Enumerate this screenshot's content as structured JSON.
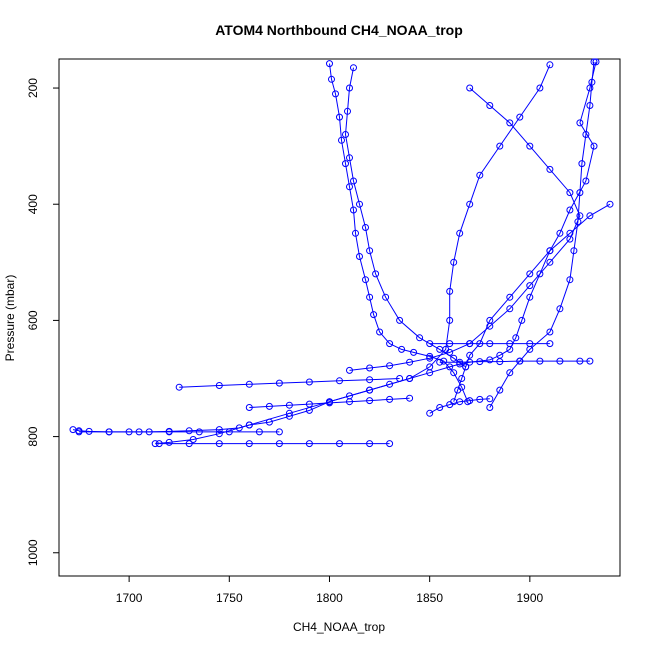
{
  "chart_data": {
    "type": "line",
    "title": "ATOM4 Northbound CH4_NOAA_trop",
    "xlabel": "CH4_NOAA_trop",
    "ylabel": "Pressure (mbar)",
    "x_ticks": [
      1700,
      1750,
      1800,
      1850,
      1900
    ],
    "x_tick_labels": [
      "1700",
      "1750",
      "1800",
      "1850",
      "1900"
    ],
    "y_ticks": [
      200,
      400,
      600,
      800,
      1000
    ],
    "y_tick_labels": [
      "200",
      "400",
      "600",
      "800",
      "1000"
    ],
    "xlim": [
      1665,
      1945
    ],
    "ylim": [
      1040,
      150
    ],
    "y_reversed": true,
    "marker": "open-circle",
    "line_color": "#0000ff",
    "marker_color": "#0000ff",
    "grid": false,
    "legend": "none",
    "series": [
      {
        "x": [
          1933,
          1930,
          1925,
          1932,
          1928,
          1920,
          1915,
          1910,
          1905,
          1900,
          1896,
          1893,
          1890,
          1885,
          1880,
          1870,
          1865,
          1860,
          1850,
          1840,
          1830,
          1820,
          1810,
          1800,
          1790,
          1780,
          1770,
          1760,
          1755,
          1745,
          1730,
          1720,
          1710,
          1700,
          1690,
          1680,
          1675,
          1672
        ],
        "y": [
          155,
          200,
          260,
          300,
          360,
          410,
          450,
          480,
          520,
          560,
          600,
          630,
          650,
          660,
          668,
          672,
          675,
          680,
          690,
          700,
          710,
          720,
          730,
          740,
          755,
          765,
          775,
          780,
          785,
          788,
          790,
          791,
          792,
          792,
          792,
          791,
          790,
          788
        ]
      },
      {
        "x": [
          1800,
          1801,
          1803,
          1805,
          1806,
          1808,
          1810,
          1812,
          1813,
          1815,
          1818,
          1820,
          1822,
          1825,
          1830,
          1836,
          1842,
          1850,
          1857,
          1862,
          1866,
          1869
        ],
        "y": [
          158,
          185,
          210,
          250,
          290,
          330,
          370,
          410,
          450,
          490,
          530,
          560,
          590,
          620,
          640,
          650,
          655,
          662,
          670,
          690,
          715,
          740
        ]
      },
      {
        "x": [
          1910,
          1905,
          1895,
          1885,
          1875,
          1870,
          1865,
          1862,
          1860,
          1860,
          1858,
          1850,
          1840,
          1820,
          1800,
          1780,
          1760,
          1745,
          1732,
          1720,
          1713
        ],
        "y": [
          160,
          200,
          250,
          300,
          350,
          400,
          450,
          500,
          550,
          600,
          650,
          680,
          700,
          720,
          740,
          760,
          780,
          795,
          805,
          810,
          812
        ]
      },
      {
        "x": [
          1870,
          1880,
          1890,
          1900,
          1910,
          1920,
          1925,
          1920,
          1910,
          1900,
          1890,
          1880,
          1870,
          1860,
          1850,
          1840,
          1830,
          1820,
          1810
        ],
        "y": [
          200,
          230,
          260,
          300,
          340,
          380,
          420,
          460,
          500,
          540,
          580,
          610,
          640,
          655,
          665,
          672,
          678,
          682,
          686
        ]
      },
      {
        "x": [
          1940,
          1930,
          1920,
          1910,
          1900,
          1890,
          1880,
          1875,
          1870,
          1868,
          1866,
          1864,
          1862
        ],
        "y": [
          400,
          420,
          450,
          480,
          520,
          560,
          600,
          640,
          660,
          680,
          700,
          720,
          740
        ]
      },
      {
        "x": [
          1932,
          1931,
          1930,
          1928,
          1926,
          1925,
          1924,
          1922,
          1920,
          1915,
          1910,
          1900,
          1895,
          1890,
          1885,
          1880
        ],
        "y": [
          155,
          190,
          230,
          280,
          330,
          380,
          430,
          480,
          530,
          580,
          620,
          650,
          670,
          690,
          720,
          750
        ]
      },
      {
        "x": [
          1812,
          1810,
          1809,
          1808,
          1810,
          1812,
          1815,
          1818,
          1820,
          1823,
          1828,
          1835,
          1845,
          1855,
          1862,
          1868
        ],
        "y": [
          165,
          200,
          240,
          280,
          320,
          360,
          400,
          440,
          480,
          520,
          560,
          600,
          630,
          650,
          665,
          680
        ]
      },
      {
        "x": [
          1715,
          1730,
          1745,
          1760,
          1775,
          1790,
          1805,
          1820,
          1830
        ],
        "y": [
          812,
          812,
          812,
          812,
          812,
          812,
          812,
          812,
          812
        ]
      },
      {
        "x": [
          1675,
          1690,
          1705,
          1720,
          1735,
          1750,
          1765,
          1775
        ],
        "y": [
          792,
          792,
          792,
          792,
          792,
          792,
          792,
          792
        ]
      },
      {
        "x": [
          1725,
          1745,
          1760,
          1775,
          1790,
          1805,
          1820,
          1835
        ],
        "y": [
          715,
          712,
          710,
          708,
          706,
          704,
          702,
          700
        ]
      },
      {
        "x": [
          1855,
          1865,
          1875,
          1885,
          1895,
          1905,
          1915,
          1925,
          1930
        ],
        "y": [
          672,
          672,
          671,
          671,
          670,
          670,
          670,
          670,
          670
        ]
      },
      {
        "x": [
          1850,
          1860,
          1870,
          1880,
          1890,
          1900,
          1910
        ],
        "y": [
          640,
          640,
          640,
          640,
          640,
          640,
          640
        ]
      },
      {
        "x": [
          1760,
          1770,
          1780,
          1790,
          1800,
          1810,
          1820,
          1830,
          1840
        ],
        "y": [
          750,
          748,
          746,
          744,
          742,
          740,
          738,
          736,
          734
        ]
      },
      {
        "x": [
          1850,
          1855,
          1860,
          1865,
          1870,
          1875,
          1880
        ],
        "y": [
          760,
          750,
          745,
          740,
          738,
          736,
          735
        ]
      }
    ]
  }
}
